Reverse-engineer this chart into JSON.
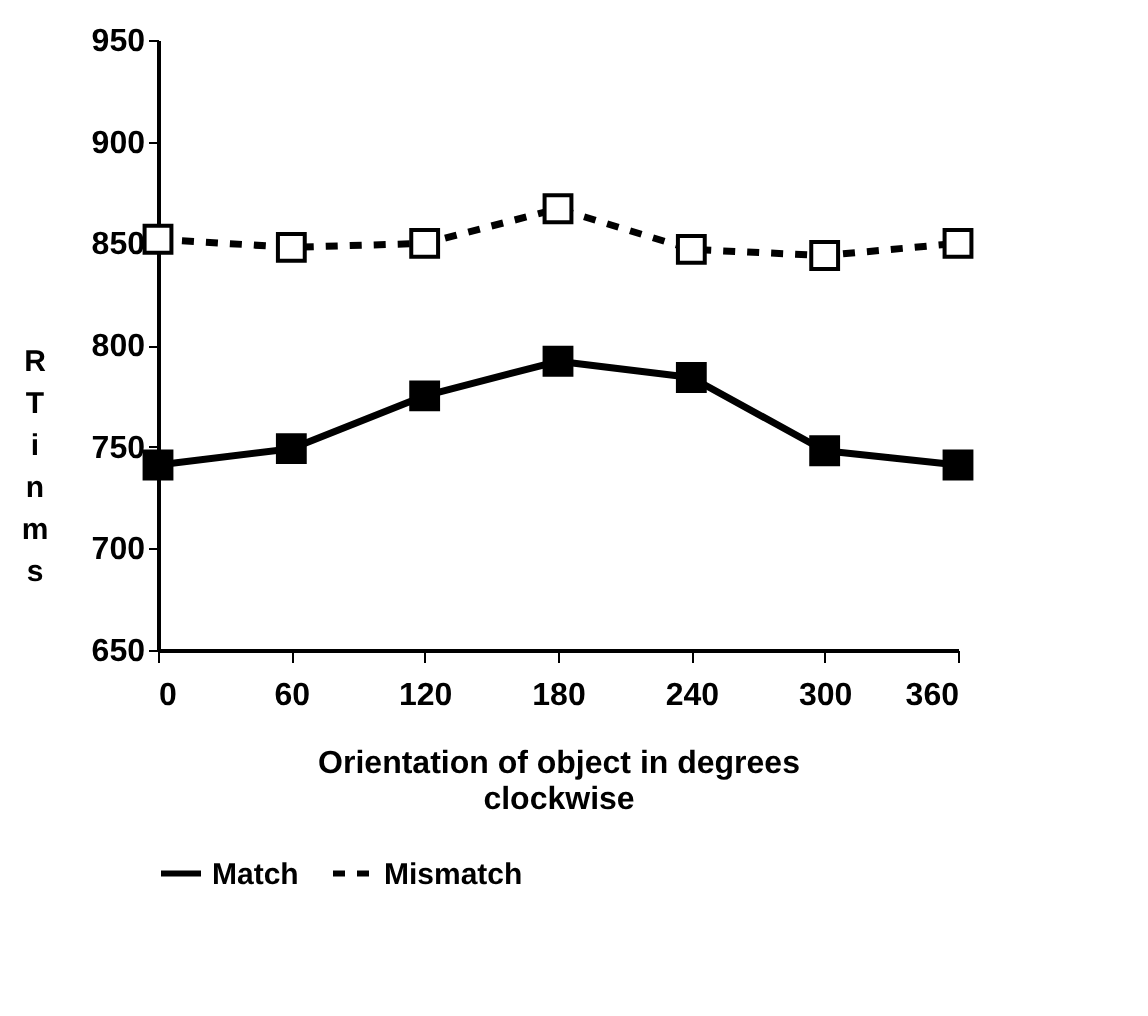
{
  "chart_data": {
    "type": "line",
    "xlabel": "Orientation of object in degrees clockwise",
    "ylabel": "RT in ms",
    "x": [
      0,
      60,
      120,
      180,
      240,
      300,
      360
    ],
    "series": [
      {
        "name": "Match",
        "color": "#000000",
        "line_style": "solid",
        "marker": "square",
        "values": [
          741,
          749,
          775,
          792,
          784,
          748,
          741
        ]
      },
      {
        "name": "Mismatch",
        "color": "#000000",
        "line_style": "dashed",
        "marker": "square",
        "values": [
          852,
          848,
          850,
          867,
          847,
          844,
          850
        ]
      }
    ],
    "xlim": [
      0,
      360
    ],
    "xticks": [
      0,
      60,
      120,
      180,
      240,
      300,
      360
    ],
    "ylim": [
      650,
      950
    ],
    "yticks": [
      650,
      700,
      750,
      800,
      850,
      900,
      950
    ],
    "grid": false,
    "legend": "bottom"
  }
}
